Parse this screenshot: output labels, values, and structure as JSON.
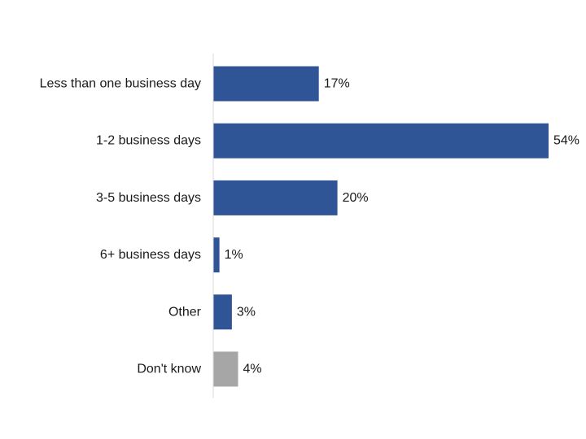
{
  "chart_data": {
    "type": "bar",
    "orientation": "horizontal",
    "categories": [
      "Less than one business day",
      "1-2 business days",
      "3-5 business days",
      "6+ business days",
      "Other",
      "Don't know"
    ],
    "values": [
      17,
      54,
      20,
      1,
      3,
      4
    ],
    "value_labels": [
      "17%",
      "54%",
      "20%",
      "1%",
      "3%",
      "4%"
    ],
    "unit": "%",
    "xlim": [
      0,
      54
    ],
    "grid": false,
    "legend": "none",
    "colors": {
      "primary": "#2f5597",
      "dont_know": "#a6a6a6",
      "axis": "#d9d9d9"
    }
  }
}
